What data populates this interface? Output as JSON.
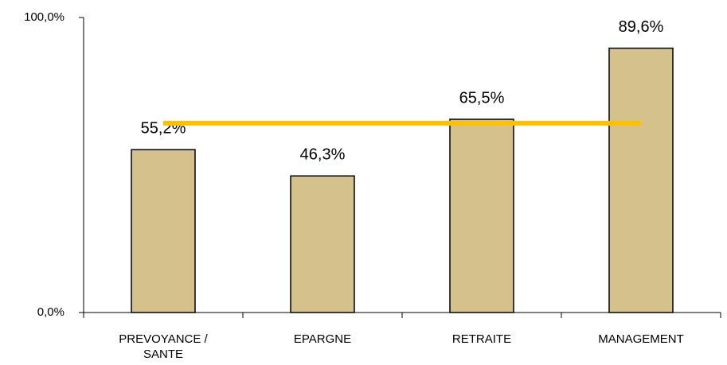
{
  "chart_data": {
    "type": "bar",
    "categories": [
      "PREVOYANCE / SANTE",
      "EPARGNE",
      "RETRAITE",
      "MANAGEMENT"
    ],
    "series": [
      {
        "type": "bar",
        "color": "#d5c18c",
        "values": [
          55.2,
          46.3,
          65.5,
          89.6
        ],
        "value_labels": [
          "55,2%",
          "46,3%",
          "65,5%",
          "89,6%"
        ]
      },
      {
        "type": "line",
        "color": "#ffc000",
        "values": [
          64.2,
          64.2,
          64.2,
          64.2
        ]
      }
    ],
    "ylim": [
      0,
      100
    ],
    "yticks": [
      {
        "value": 0,
        "label": "0,0%"
      },
      {
        "value": 100,
        "label": "100,0%"
      }
    ],
    "grid": false
  }
}
